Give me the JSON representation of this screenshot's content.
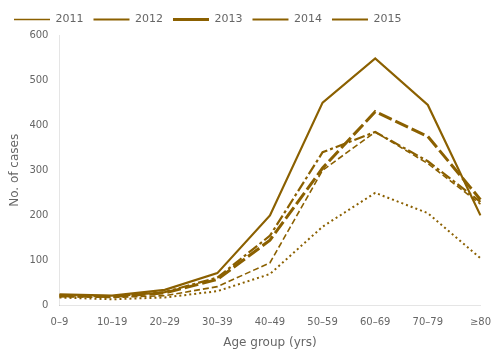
{
  "chart_data": {
    "type": "line",
    "xlabel": "Age group (yrs)",
    "ylabel": "No. of cases",
    "categories": [
      "0–9",
      "10–19",
      "20–29",
      "30–39",
      "40–49",
      "50–59",
      "60–69",
      "70–79",
      "≥80"
    ],
    "color": "#8B6000",
    "series": [
      {
        "name": "2011",
        "line_style": "short_dash",
        "values": [
          20,
          18,
          22,
          42,
          95,
          300,
          385,
          315,
          225
        ]
      },
      {
        "name": "2012",
        "line_style": "dotted",
        "values": [
          18,
          14,
          18,
          32,
          70,
          175,
          250,
          205,
          105
        ]
      },
      {
        "name": "2013",
        "line_style": "long_dash",
        "values": [
          22,
          20,
          28,
          58,
          145,
          305,
          430,
          375,
          235
        ]
      },
      {
        "name": "2014",
        "line_style": "dashdot",
        "values": [
          23,
          20,
          30,
          62,
          155,
          340,
          385,
          320,
          230
        ]
      },
      {
        "name": "2015",
        "line_style": "solid",
        "values": [
          25,
          22,
          35,
          72,
          200,
          450,
          548,
          445,
          200
        ]
      }
    ],
    "ylim": [
      0,
      600
    ],
    "yticks": [
      0,
      100,
      200,
      300,
      400,
      500,
      600
    ],
    "grid": false,
    "legend": "upper left"
  }
}
